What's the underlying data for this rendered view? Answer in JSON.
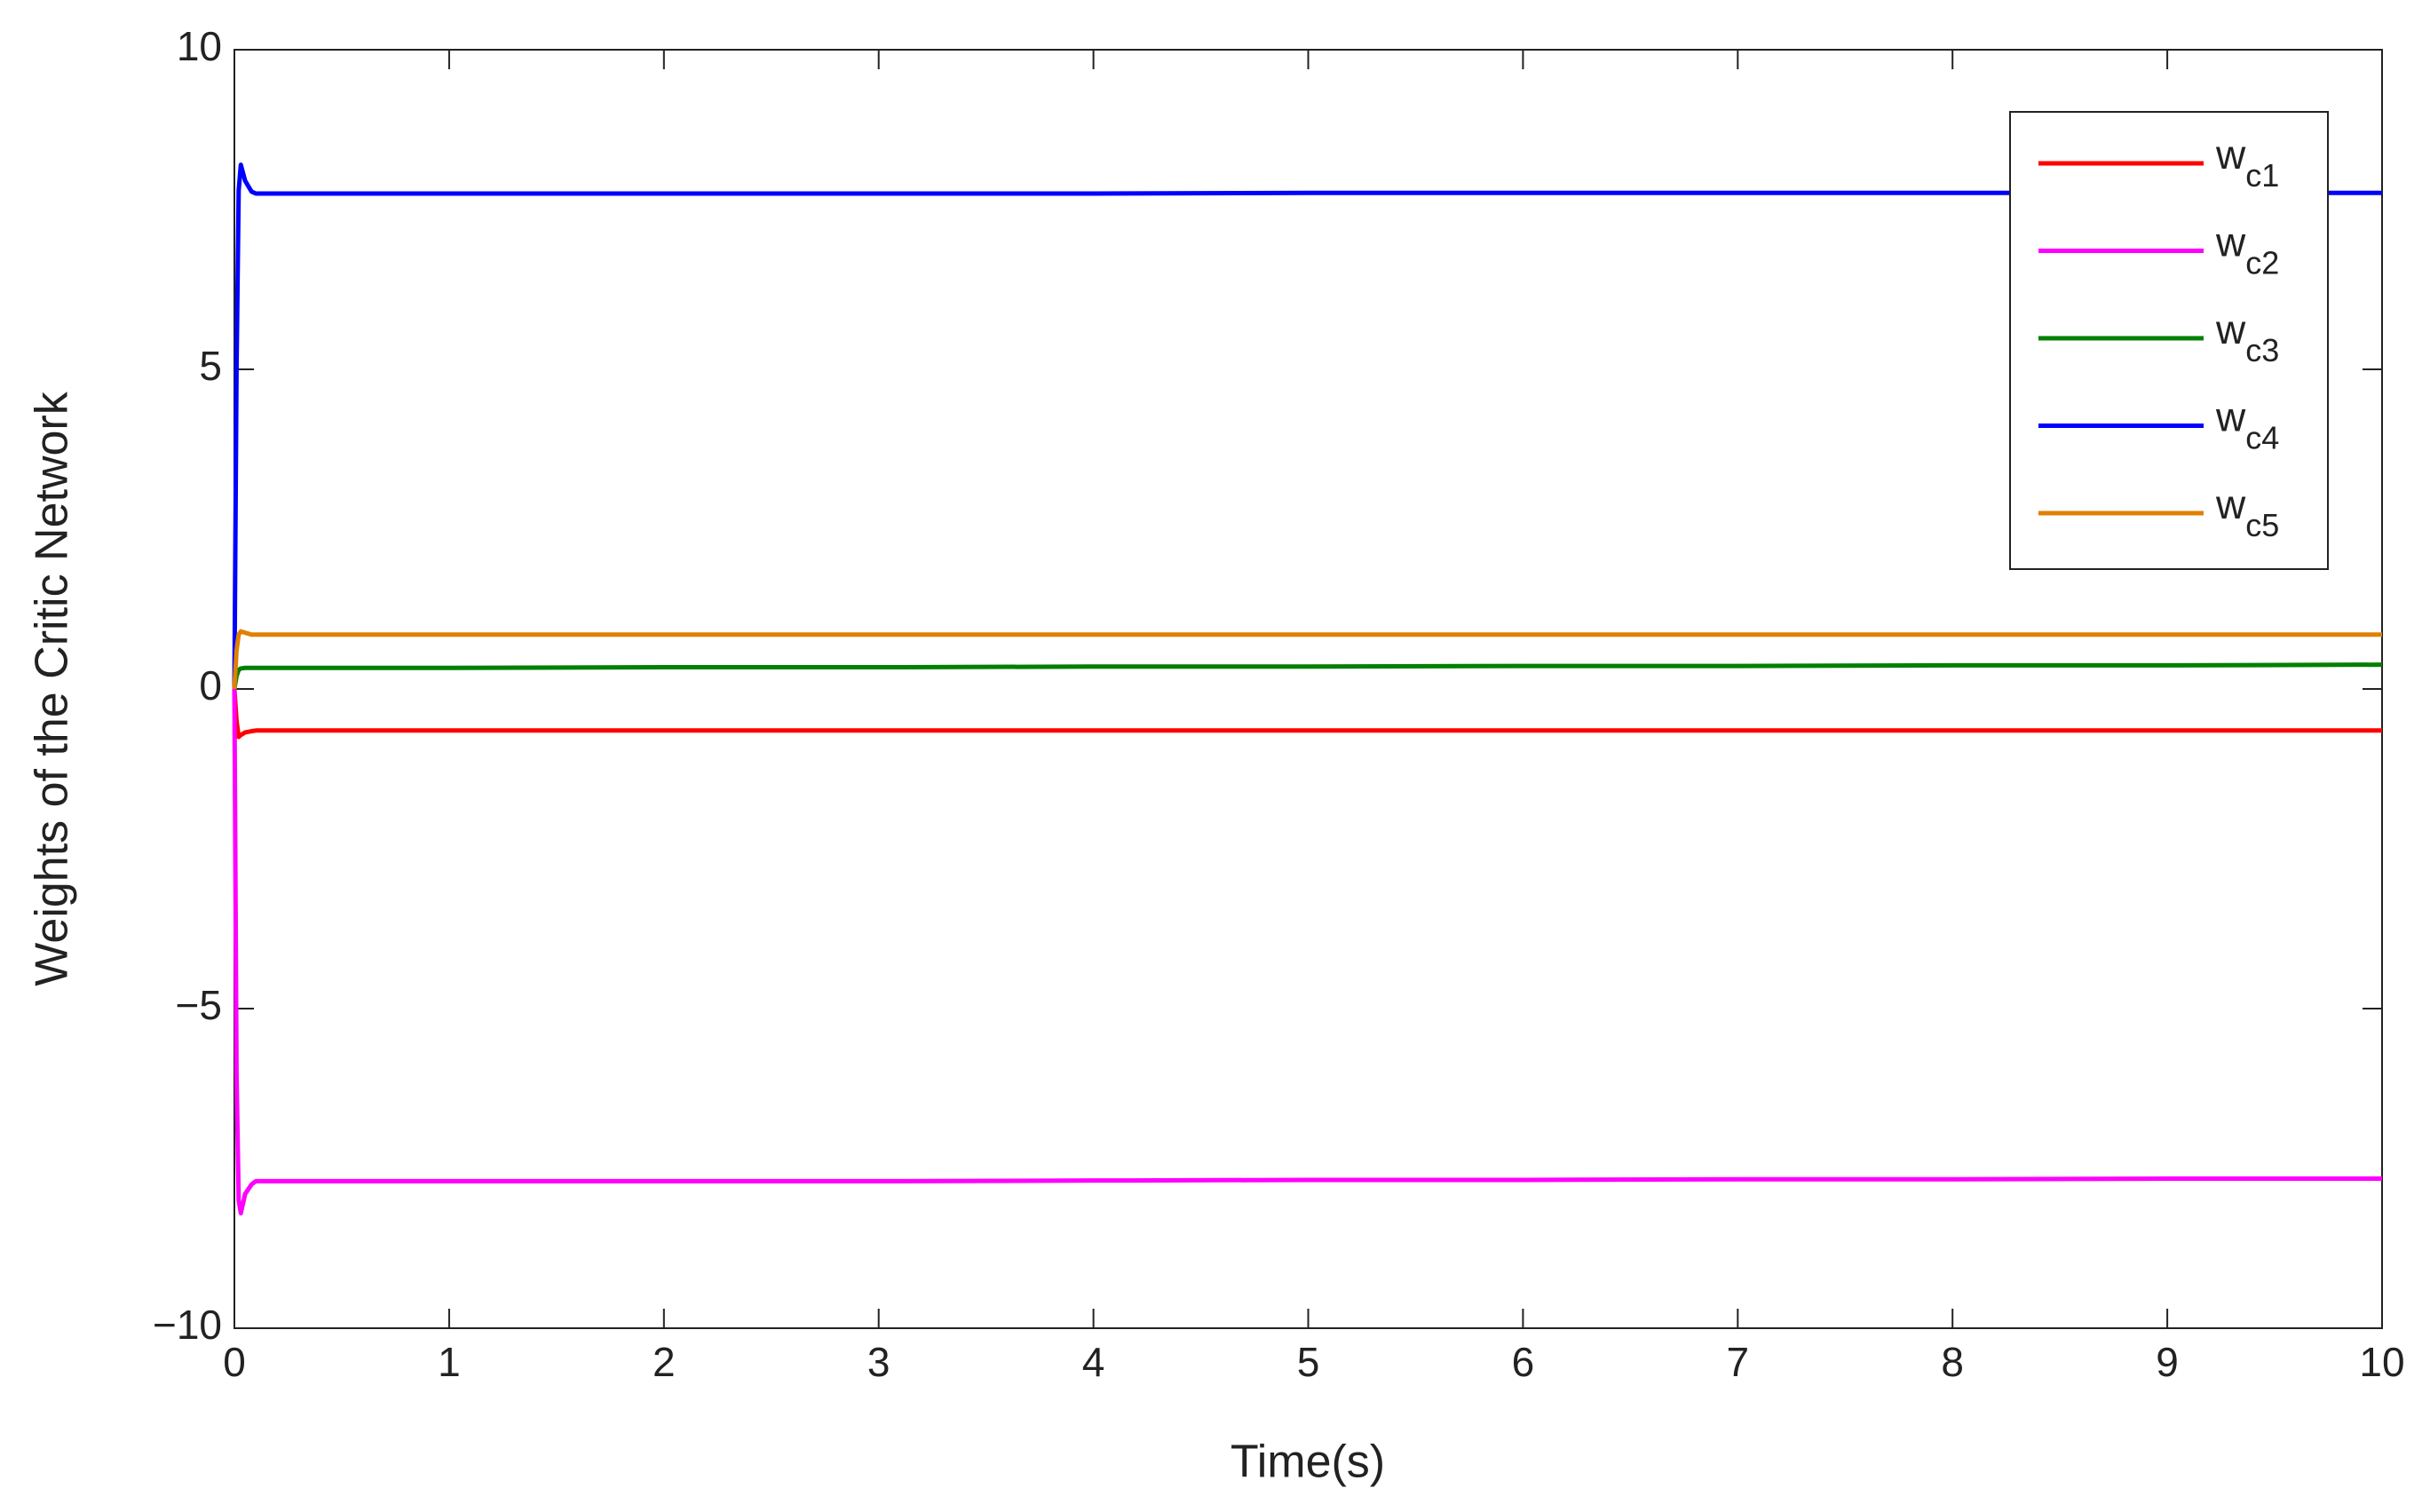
{
  "chart_data": {
    "type": "line",
    "xlabel": "Time(s)",
    "ylabel": "Weights of the Critic Network",
    "x": [
      0,
      0.01,
      0.02,
      0.03,
      0.05,
      0.08,
      0.1,
      0.2,
      1,
      2,
      3,
      4,
      5,
      6,
      7,
      8,
      9,
      10
    ],
    "series": [
      {
        "name": "wc1",
        "color": "#ff0000",
        "values": [
          0,
          -0.5,
          -0.75,
          -0.72,
          -0.68,
          -0.66,
          -0.65,
          -0.65,
          -0.65,
          -0.65,
          -0.65,
          -0.65,
          -0.65,
          -0.65,
          -0.65,
          -0.65,
          -0.65,
          -0.65
        ]
      },
      {
        "name": "wc2",
        "color": "#ff00ff",
        "values": [
          0,
          -6,
          -8.0,
          -8.2,
          -7.9,
          -7.75,
          -7.7,
          -7.7,
          -7.7,
          -7.7,
          -7.7,
          -7.69,
          -7.68,
          -7.68,
          -7.67,
          -7.67,
          -7.66,
          -7.66
        ]
      },
      {
        "name": "wc3",
        "color": "#008000",
        "values": [
          0,
          0.2,
          0.3,
          0.32,
          0.33,
          0.33,
          0.33,
          0.33,
          0.33,
          0.34,
          0.34,
          0.35,
          0.35,
          0.36,
          0.36,
          0.37,
          0.37,
          0.38
        ]
      },
      {
        "name": "wc4",
        "color": "#0000ff",
        "values": [
          0,
          5,
          7.8,
          8.2,
          7.95,
          7.78,
          7.75,
          7.75,
          7.75,
          7.75,
          7.75,
          7.75,
          7.76,
          7.76,
          7.76,
          7.76,
          7.76,
          7.76
        ]
      },
      {
        "name": "wc5",
        "color": "#e08000",
        "values": [
          0,
          0.6,
          0.85,
          0.9,
          0.88,
          0.85,
          0.85,
          0.85,
          0.85,
          0.85,
          0.85,
          0.85,
          0.85,
          0.85,
          0.85,
          0.85,
          0.85,
          0.85
        ]
      }
    ],
    "xlim": [
      0,
      10
    ],
    "xticks": [
      0,
      1,
      2,
      3,
      4,
      5,
      6,
      7,
      8,
      9,
      10
    ],
    "ylim": [
      -10,
      10
    ],
    "yticks": [
      {
        "value": -10,
        "label": "−10"
      },
      {
        "value": -5,
        "label": "−5"
      },
      0,
      5,
      10
    ],
    "grid": false,
    "legend": "upper right"
  }
}
